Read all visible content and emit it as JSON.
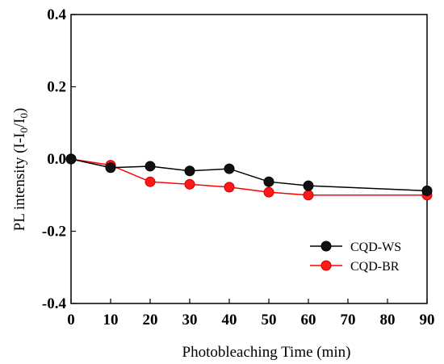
{
  "chart_data": {
    "type": "line",
    "xlabel": "Photobleaching Time (min)",
    "ylabel_main": "PL intensity (I-I",
    "ylabel_sub": "0",
    "ylabel_mid": "/I",
    "ylabel_sub2": "0",
    "ylabel_end": ")",
    "xlim": [
      0,
      90
    ],
    "ylim": [
      -0.4,
      0.4
    ],
    "x_ticks": [
      0,
      10,
      20,
      30,
      40,
      50,
      60,
      70,
      80,
      90
    ],
    "x_tick_labels": [
      "0",
      "10",
      "20",
      "30",
      "40",
      "50",
      "60",
      "70",
      "80",
      "90"
    ],
    "y_ticks": [
      0.4,
      0.2,
      0.0,
      -0.2,
      -0.4
    ],
    "y_tick_labels": [
      "0.4",
      "0.2",
      "0.0",
      "-0.2",
      "-0.4"
    ],
    "legend_position": "bottom-right",
    "series": [
      {
        "name": "CQD-WS",
        "color": "#000000",
        "marker_color": "#111111",
        "x": [
          0,
          10,
          20,
          30,
          40,
          50,
          60,
          90
        ],
        "y": [
          0.0,
          -0.024,
          -0.02,
          -0.033,
          -0.027,
          -0.063,
          -0.074,
          -0.088
        ]
      },
      {
        "name": "CQD-BR",
        "color": "#ff0000",
        "marker_color": "#ff1a1a",
        "x": [
          0,
          10,
          20,
          30,
          40,
          50,
          60,
          90
        ],
        "y": [
          0.0,
          -0.017,
          -0.063,
          -0.07,
          -0.078,
          -0.092,
          -0.1,
          -0.1
        ]
      }
    ]
  }
}
